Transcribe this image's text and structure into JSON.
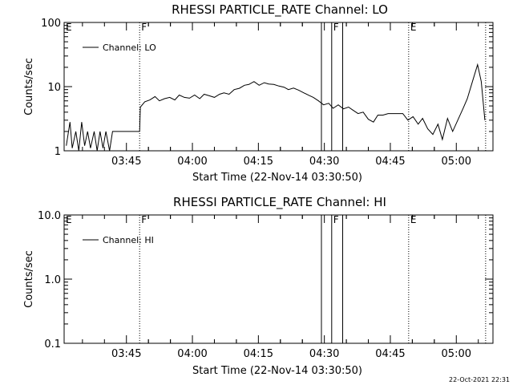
{
  "footer_timestamp": "22-Oct-2021 22:31",
  "chart_data": [
    {
      "type": "line",
      "title": "RHESSI PARTICLE_RATE Channel: LO",
      "xlabel": "Start Time (22-Nov-14 03:30:50)",
      "ylabel": "Counts/sec",
      "yscale": "log",
      "ylim": [
        1,
        100
      ],
      "xlim_seconds_from_start": [
        0,
        5850
      ],
      "yticks": [
        "1",
        "10",
        "100"
      ],
      "xticks": [
        "03:45",
        "04:00",
        "04:15",
        "04:30",
        "04:45",
        "05:00"
      ],
      "legend": "Channel: LO",
      "flags": [
        {
          "label": "E",
          "time": "03:30:50",
          "style": "edge"
        },
        {
          "label": "F",
          "time": "03:48:00",
          "style": "dotted"
        },
        {
          "label": "",
          "time": "04:29:20",
          "style": "solid"
        },
        {
          "label": "F",
          "time": "04:31:40",
          "style": "solid"
        },
        {
          "label": "",
          "time": "04:34:10",
          "style": "solid"
        },
        {
          "label": "E",
          "time": "04:49:10",
          "style": "dotted"
        },
        {
          "label": "",
          "time": "05:06:40",
          "style": "dotted"
        }
      ],
      "series": [
        {
          "x": [
            "03:31:20",
            "03:32:10",
            "03:32:40",
            "03:33:30",
            "03:34:10",
            "03:34:50",
            "03:35:30",
            "03:36:10",
            "03:36:50",
            "03:37:40",
            "03:38:20",
            "03:39:00",
            "03:39:40",
            "03:40:20",
            "03:41:10",
            "03:41:50",
            "03:42:30",
            "03:43:10",
            "03:44:00",
            "03:45:00",
            "03:46:00",
            "03:47:00",
            "03:47:50",
            "03:48:00",
            "03:48:10",
            "03:49:10",
            "03:50:20",
            "03:51:30",
            "03:52:30",
            "03:53:40",
            "03:54:50",
            "03:56:00",
            "03:57:00",
            "03:58:10",
            "03:59:20",
            "04:00:30",
            "04:01:40",
            "04:02:40",
            "04:03:50",
            "04:05:00",
            "04:06:10",
            "04:07:10",
            "04:08:20",
            "04:09:30",
            "04:10:40",
            "04:11:50",
            "04:12:50",
            "04:14:00",
            "04:15:10",
            "04:16:20",
            "04:17:20",
            "04:18:30",
            "04:19:40",
            "04:20:50",
            "04:21:50",
            "04:23:00",
            "04:24:10",
            "04:25:20",
            "04:26:30",
            "04:27:30",
            "04:28:40",
            "04:29:50",
            "04:31:00",
            "04:32:00",
            "04:33:10",
            "04:34:20",
            "04:35:30",
            "04:36:30",
            "04:37:40",
            "04:38:50",
            "04:40:00",
            "04:41:10",
            "04:42:10",
            "04:43:20",
            "04:44:30",
            "04:45:40",
            "04:46:40",
            "04:47:50",
            "04:49:00",
            "04:50:10",
            "04:51:20",
            "04:52:20",
            "04:53:30",
            "04:54:40",
            "04:55:50",
            "04:56:50",
            "04:58:00",
            "04:59:10",
            "05:00:20",
            "05:01:30",
            "05:02:30",
            "05:03:40",
            "05:04:50",
            "05:05:40",
            "05:06:30"
          ],
          "y": [
            1.2,
            2.8,
            1.1,
            2.0,
            1.0,
            2.8,
            1.2,
            2.0,
            1.1,
            2.0,
            1.0,
            2.0,
            1.1,
            2.0,
            1.0,
            2.0,
            2.0,
            2.0,
            2.0,
            2.0,
            2.0,
            2.0,
            2.0,
            2.0,
            4.8,
            5.8,
            6.2,
            7.0,
            6.0,
            6.5,
            6.8,
            6.2,
            7.4,
            6.8,
            6.6,
            7.4,
            6.5,
            7.6,
            7.2,
            6.8,
            7.6,
            8.0,
            7.6,
            9.0,
            9.4,
            10.5,
            10.8,
            12.0,
            10.5,
            11.5,
            11.0,
            10.8,
            10.2,
            9.8,
            9.0,
            9.5,
            8.8,
            8.0,
            7.3,
            6.8,
            6.0,
            5.2,
            5.5,
            4.6,
            5.2,
            4.5,
            4.8,
            4.3,
            3.8,
            4.0,
            3.1,
            2.8,
            3.6,
            3.6,
            3.8,
            3.8,
            3.8,
            3.8,
            3.0,
            3.4,
            2.6,
            3.2,
            2.2,
            1.8,
            2.6,
            1.5,
            3.2,
            2.0,
            3.0,
            4.5,
            6.5,
            12.0,
            22.0,
            12.0,
            3.0
          ]
        }
      ]
    },
    {
      "type": "line",
      "title": "RHESSI PARTICLE_RATE Channel: HI",
      "xlabel": "Start Time (22-Nov-14 03:30:50)",
      "ylabel": "Counts/sec",
      "yscale": "log",
      "ylim": [
        0.1,
        10
      ],
      "xlim_seconds_from_start": [
        0,
        5850
      ],
      "yticks": [
        "0.1",
        "1.0",
        "10.0"
      ],
      "xticks": [
        "03:45",
        "04:00",
        "04:15",
        "04:30",
        "04:45",
        "05:00"
      ],
      "legend": "Channel: HI",
      "flags": [
        {
          "label": "E",
          "time": "03:30:50",
          "style": "edge"
        },
        {
          "label": "F",
          "time": "03:48:00",
          "style": "dotted"
        },
        {
          "label": "",
          "time": "04:29:20",
          "style": "solid"
        },
        {
          "label": "F",
          "time": "04:31:40",
          "style": "solid"
        },
        {
          "label": "",
          "time": "04:34:10",
          "style": "solid"
        },
        {
          "label": "E",
          "time": "04:49:10",
          "style": "dotted"
        },
        {
          "label": "",
          "time": "05:06:40",
          "style": "dotted"
        }
      ],
      "series": [
        {
          "x": [],
          "y": []
        }
      ]
    }
  ]
}
